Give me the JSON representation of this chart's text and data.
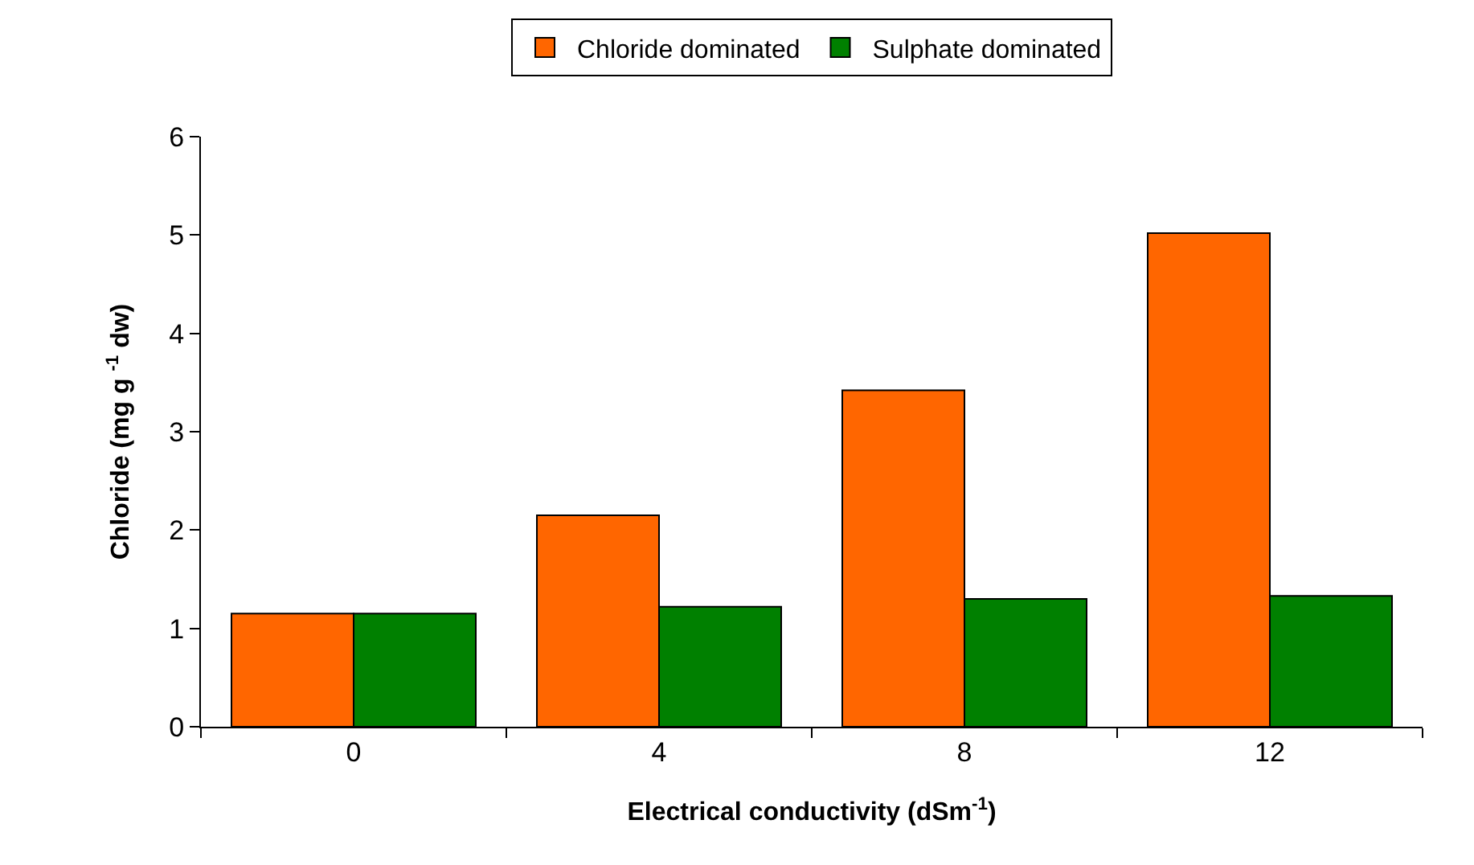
{
  "chart_data": {
    "type": "bar",
    "xlabel": "Electrical conductivity (dSm$^{-1}$)",
    "ylabel": "Chloride (mg g $^{-1}$ dw)",
    "categories": [
      "0",
      "4",
      "8",
      "12"
    ],
    "series": [
      {
        "name": "Chloride dominated",
        "color": "#ff6600",
        "values": [
          1.15,
          2.15,
          3.42,
          5.02
        ]
      },
      {
        "name": "Sulphate dominated",
        "color": "#008000",
        "values": [
          1.15,
          1.22,
          1.3,
          1.33
        ]
      }
    ],
    "ylim": [
      0,
      6
    ],
    "yticks": [
      0,
      1,
      2,
      3,
      4,
      5,
      6
    ],
    "grid": false,
    "legend": "top"
  }
}
